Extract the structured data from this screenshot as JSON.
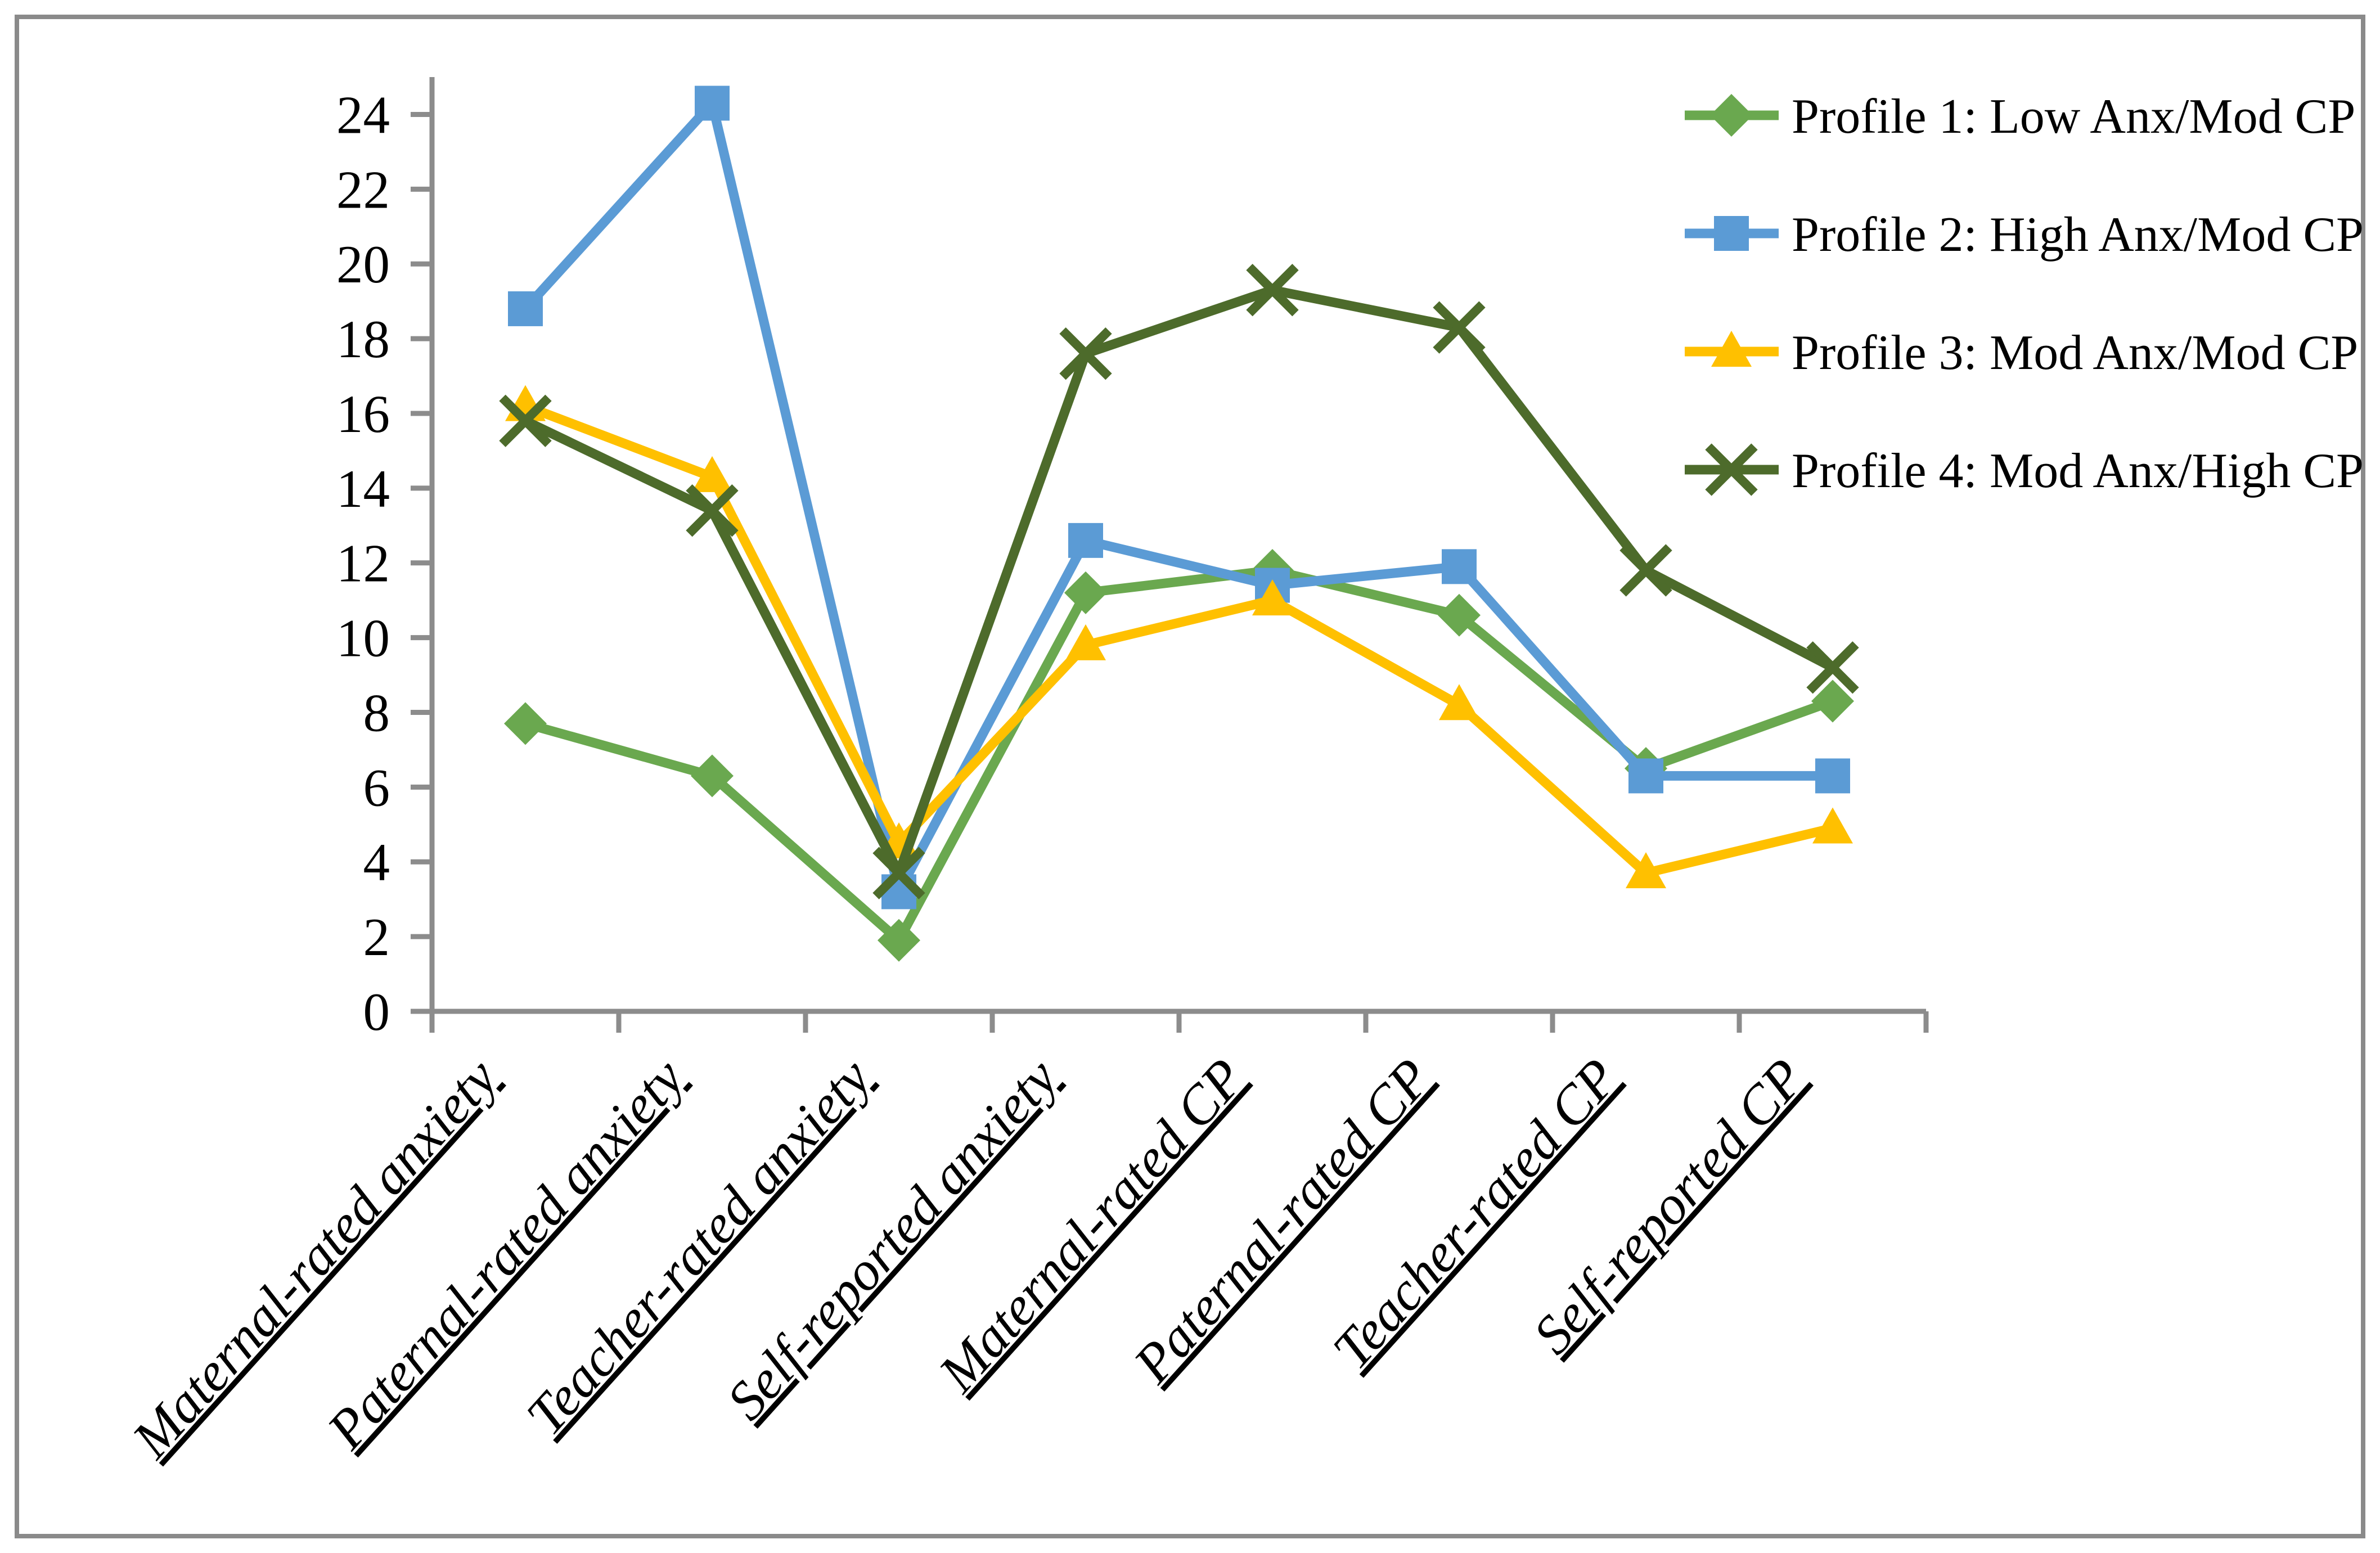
{
  "figure": {
    "background": "#FFFFFF",
    "border_color": "#8A8A8A"
  },
  "chart_data": {
    "type": "line",
    "title": "",
    "xlabel": "",
    "ylabel": "",
    "categories": [
      "Maternal-rated anxiety",
      "Paternal-rated anxiety",
      "Teacher-rated anxiety",
      "Self-reported anxiety",
      "Maternal-rated CP",
      "Paternal-rated CP",
      "Teacher-rated CP",
      "Self-reported CP"
    ],
    "series": [
      {
        "name": "Profile 1: Low Anx/Mod CP",
        "marker": "diamond",
        "color": "#6AA84F",
        "values": [
          7.7,
          6.3,
          1.9,
          11.2,
          11.8,
          10.6,
          6.5,
          8.3
        ]
      },
      {
        "name": "Profile 2: High Anx/Mod CP",
        "marker": "square",
        "color": "#5B9BD5",
        "values": [
          18.8,
          24.3,
          3.2,
          12.6,
          11.4,
          11.9,
          6.3,
          6.3
        ]
      },
      {
        "name": "Profile 3: Mod Anx/Mod CP",
        "marker": "triangle",
        "color": "#FFC000",
        "values": [
          16.2,
          14.3,
          4.5,
          9.8,
          11.0,
          8.2,
          3.7,
          4.9
        ]
      },
      {
        "name": "Profile 4: Mod Anx/High CP",
        "marker": "x",
        "color": "#4D6B2B",
        "values": [
          15.8,
          13.4,
          3.7,
          17.6,
          19.3,
          18.3,
          11.8,
          9.2
        ]
      }
    ],
    "ylim": [
      0,
      25
    ],
    "y_ticks": [
      0,
      2,
      4,
      6,
      8,
      10,
      12,
      14,
      16,
      18,
      20,
      22,
      24
    ],
    "grid": "off",
    "legend_position": "top-right",
    "axis_color": "#8C8C8C",
    "text_color": "#000000"
  }
}
